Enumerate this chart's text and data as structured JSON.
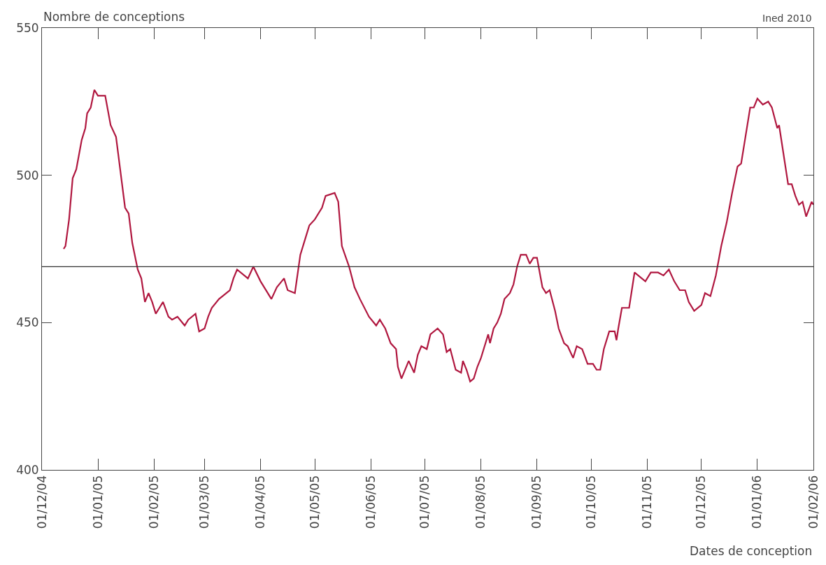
{
  "chart_data": {
    "type": "line",
    "ylabel": "Nombre de conceptions",
    "xlabel": "Dates de conception",
    "annotations": [
      "Ined 2010"
    ],
    "x": [
      "2004-12-13",
      "2004-12-14",
      "2004-12-16",
      "2004-12-18",
      "2004-12-20",
      "2004-12-23",
      "2004-12-25",
      "2004-12-26",
      "2004-12-28",
      "2004-12-30",
      "2005-01-01",
      "2005-01-05",
      "2005-01-08",
      "2005-01-11",
      "2005-01-16",
      "2005-01-18",
      "2005-01-20",
      "2005-01-23",
      "2005-01-25",
      "2005-01-27",
      "2005-01-29",
      "2005-01-31",
      "2005-02-02",
      "2005-02-04",
      "2005-02-06",
      "2005-02-09",
      "2005-02-11",
      "2005-02-14",
      "2005-02-18",
      "2005-02-20",
      "2005-02-24",
      "2005-02-26",
      "2005-03-01",
      "2005-03-03",
      "2005-03-05",
      "2005-03-09",
      "2005-03-15",
      "2005-03-17",
      "2005-03-19",
      "2005-03-25",
      "2005-03-28",
      "2005-04-01",
      "2005-04-07",
      "2005-04-10",
      "2005-04-14",
      "2005-04-16",
      "2005-04-20",
      "2005-04-23",
      "2005-04-26",
      "2005-04-28",
      "2005-05-01",
      "2005-05-05",
      "2005-05-07",
      "2005-05-12",
      "2005-05-14",
      "2005-05-16",
      "2005-05-20",
      "2005-05-23",
      "2005-05-26",
      "2005-05-31",
      "2005-06-04",
      "2005-06-06",
      "2005-06-09",
      "2005-06-12",
      "2005-06-15",
      "2005-06-16",
      "2005-06-18",
      "2005-06-22",
      "2005-06-25",
      "2005-06-27",
      "2005-06-29",
      "2005-07-02",
      "2005-07-04",
      "2005-07-08",
      "2005-07-11",
      "2005-07-13",
      "2005-07-15",
      "2005-07-18",
      "2005-07-21",
      "2005-07-22",
      "2005-07-24",
      "2005-07-26",
      "2005-07-28",
      "2005-07-30",
      "2005-08-01",
      "2005-08-03",
      "2005-08-05",
      "2005-08-06",
      "2005-08-08",
      "2005-08-10",
      "2005-08-12",
      "2005-08-14",
      "2005-08-17",
      "2005-08-19",
      "2005-08-21",
      "2005-08-23",
      "2005-08-26",
      "2005-08-28",
      "2005-08-30",
      "2005-09-01",
      "2005-09-04",
      "2005-09-06",
      "2005-09-08",
      "2005-09-11",
      "2005-09-13",
      "2005-09-16",
      "2005-09-18",
      "2005-09-21",
      "2005-09-23",
      "2005-09-26",
      "2005-09-29",
      "2005-10-02",
      "2005-10-04",
      "2005-10-06",
      "2005-10-08",
      "2005-10-11",
      "2005-10-14",
      "2005-10-15",
      "2005-10-16",
      "2005-10-18",
      "2005-10-22",
      "2005-10-25",
      "2005-10-29",
      "2005-10-31",
      "2005-11-03",
      "2005-11-07",
      "2005-11-10",
      "2005-11-13",
      "2005-11-16",
      "2005-11-19",
      "2005-11-22",
      "2005-11-24",
      "2005-11-27",
      "2005-12-01",
      "2005-12-03",
      "2005-12-06",
      "2005-12-09",
      "2005-12-12",
      "2005-12-15",
      "2005-12-18",
      "2005-12-21",
      "2005-12-23",
      "2005-12-28",
      "2005-12-30",
      "2006-01-01",
      "2006-01-04",
      "2006-01-07",
      "2006-01-09",
      "2006-01-12",
      "2006-01-13",
      "2006-01-18",
      "2006-01-20",
      "2006-01-22",
      "2006-01-24",
      "2006-01-26",
      "2006-01-28",
      "2006-01-31",
      "2006-02-01"
    ],
    "series": [
      {
        "color": "#b0173f",
        "values": [
          475,
          476,
          485,
          499,
          502,
          512,
          516,
          521,
          523,
          529,
          527,
          527,
          517,
          513,
          489,
          487,
          477,
          468,
          465,
          457,
          460,
          457,
          453,
          455,
          457,
          452,
          451,
          452,
          449,
          451,
          453,
          447,
          448,
          452,
          455,
          458,
          461,
          465,
          468,
          465,
          469,
          464,
          458,
          462,
          465,
          461,
          460,
          473,
          479,
          483,
          485,
          489,
          493,
          494,
          491,
          476,
          469,
          462,
          458,
          452,
          449,
          451,
          448,
          443,
          441,
          435,
          431,
          437,
          433,
          439,
          442,
          441,
          446,
          448,
          446,
          440,
          441,
          434,
          433,
          437,
          434,
          430,
          431,
          435,
          438,
          442,
          446,
          443,
          448,
          450,
          453,
          458,
          460,
          463,
          469,
          473,
          473,
          470,
          472,
          472,
          462,
          460,
          461,
          454,
          448,
          443,
          442,
          438,
          442,
          441,
          436,
          436,
          434,
          434,
          441,
          447,
          447,
          444,
          448,
          455,
          455,
          467,
          465,
          464,
          467,
          467,
          466,
          468,
          464,
          461,
          461,
          457,
          454,
          456,
          460,
          459,
          466,
          476,
          484,
          494,
          503,
          504,
          523,
          523,
          526,
          524,
          525,
          523,
          516,
          517,
          497,
          497,
          493,
          490,
          491,
          486,
          491,
          490
        ]
      }
    ],
    "xlim": [
      "2004-12-01",
      "2006-02-01"
    ],
    "xticks": [
      {
        "value": "2004-12-01",
        "label": "01/12/04"
      },
      {
        "value": "2005-01-01",
        "label": "01/01/05"
      },
      {
        "value": "2005-02-01",
        "label": "01/02/05"
      },
      {
        "value": "2005-03-01",
        "label": "01/03/05"
      },
      {
        "value": "2005-04-01",
        "label": "01/04/05"
      },
      {
        "value": "2005-05-01",
        "label": "01/05/05"
      },
      {
        "value": "2005-06-01",
        "label": "01/06/05"
      },
      {
        "value": "2005-07-01",
        "label": "01/07/05"
      },
      {
        "value": "2005-08-01",
        "label": "01/08/05"
      },
      {
        "value": "2005-09-01",
        "label": "01/09/05"
      },
      {
        "value": "2005-10-01",
        "label": "01/10/05"
      },
      {
        "value": "2005-11-01",
        "label": "01/11/05"
      },
      {
        "value": "2005-12-01",
        "label": "01/12/05"
      },
      {
        "value": "2006-01-01",
        "label": "01/01/06"
      },
      {
        "value": "2006-02-01",
        "label": "01/02/06"
      }
    ],
    "ylim": [
      400,
      550
    ],
    "yticks": [
      400,
      450,
      500,
      550
    ],
    "ref_lines": [
      {
        "axis": "y",
        "value": 469,
        "color": "#333333"
      }
    ],
    "line_style": "solid",
    "grid": false
  }
}
